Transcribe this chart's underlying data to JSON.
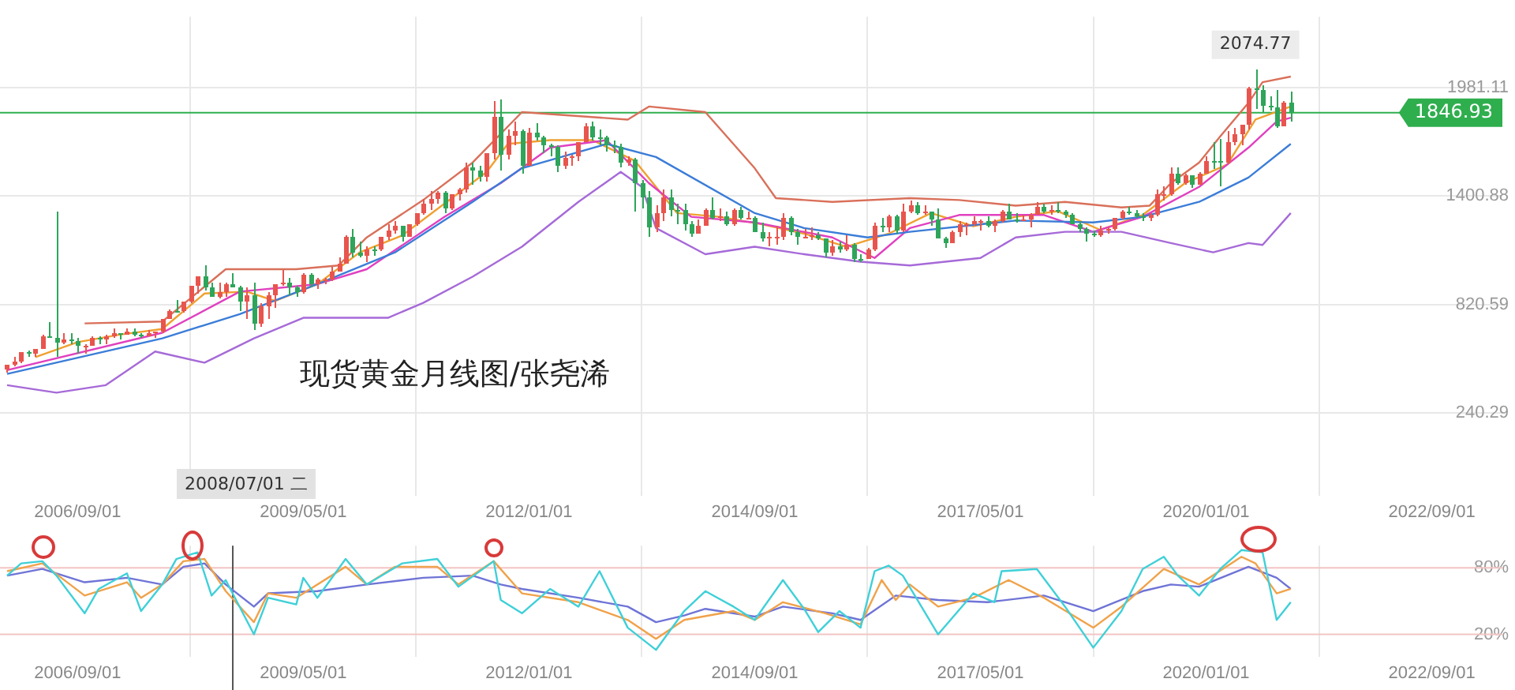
{
  "chart_data": [
    {
      "type": "candlestick",
      "title": "现货黄金月线图/张尧浠",
      "x": [
        "2005-11",
        "2005-12",
        "2006-01",
        "2006-02",
        "2006-03",
        "2006-04",
        "2006-05",
        "2006-06",
        "2006-07",
        "2006-08",
        "2006-09",
        "2006-10",
        "2006-11",
        "2006-12",
        "2007-01",
        "2007-02",
        "2007-03",
        "2007-04",
        "2007-05",
        "2007-06",
        "2007-07",
        "2007-08",
        "2007-09",
        "2007-10",
        "2007-11",
        "2007-12",
        "2008-01",
        "2008-02",
        "2008-03",
        "2008-04",
        "2008-05",
        "2008-06",
        "2008-07",
        "2008-08",
        "2008-09",
        "2008-10",
        "2008-11",
        "2008-12",
        "2009-01",
        "2009-02",
        "2009-03",
        "2009-04",
        "2009-05",
        "2009-06",
        "2009-07",
        "2009-08",
        "2009-09",
        "2009-10",
        "2009-11",
        "2009-12",
        "2010-01",
        "2010-02",
        "2010-03",
        "2010-04",
        "2010-05",
        "2010-06",
        "2010-07",
        "2010-08",
        "2010-09",
        "2010-10",
        "2010-11",
        "2010-12",
        "2011-01",
        "2011-02",
        "2011-03",
        "2011-04",
        "2011-05",
        "2011-06",
        "2011-07",
        "2011-08",
        "2011-09",
        "2011-10",
        "2011-11",
        "2011-12",
        "2012-01",
        "2012-02",
        "2012-03",
        "2012-04",
        "2012-05",
        "2012-06",
        "2012-07",
        "2012-08",
        "2012-09",
        "2012-10",
        "2012-11",
        "2012-12",
        "2013-01",
        "2013-02",
        "2013-03",
        "2013-04",
        "2013-05",
        "2013-06",
        "2013-07",
        "2013-08",
        "2013-09",
        "2013-10",
        "2013-11",
        "2013-12",
        "2014-01",
        "2014-02",
        "2014-03",
        "2014-04",
        "2014-05",
        "2014-06",
        "2014-07",
        "2014-08",
        "2014-09",
        "2014-10",
        "2014-11",
        "2014-12",
        "2015-01",
        "2015-02",
        "2015-03",
        "2015-04",
        "2015-05",
        "2015-06",
        "2015-07",
        "2015-08",
        "2015-09",
        "2015-10",
        "2015-11",
        "2015-12",
        "2016-01",
        "2016-02",
        "2016-03",
        "2016-04",
        "2016-05",
        "2016-06",
        "2016-07",
        "2016-08",
        "2016-09",
        "2016-10",
        "2016-11",
        "2016-12",
        "2017-01",
        "2017-02",
        "2017-03",
        "2017-04",
        "2017-05",
        "2017-06",
        "2017-07",
        "2017-08",
        "2017-09",
        "2017-10",
        "2017-11",
        "2017-12",
        "2018-01",
        "2018-02",
        "2018-03",
        "2018-04",
        "2018-05",
        "2018-06",
        "2018-07",
        "2018-08",
        "2018-09",
        "2018-10",
        "2018-11",
        "2018-12",
        "2019-01",
        "2019-02",
        "2019-03",
        "2019-04",
        "2019-05",
        "2019-06",
        "2019-07",
        "2019-08",
        "2019-09",
        "2019-10",
        "2019-11",
        "2019-12",
        "2020-01",
        "2020-02",
        "2020-03",
        "2020-04",
        "2020-05",
        "2020-06",
        "2020-07",
        "2020-08",
        "2020-09",
        "2020-10",
        "2020-11",
        "2020-12",
        "2021-01"
      ],
      "ohlc": [
        [
          470,
          500,
          460,
          495
        ],
        [
          495,
          540,
          490,
          513
        ],
        [
          513,
          570,
          510,
          568
        ],
        [
          568,
          575,
          540,
          556
        ],
        [
          556,
          585,
          540,
          583
        ],
        [
          583,
          660,
          580,
          654
        ],
        [
          654,
          730,
          640,
          643
        ],
        [
          643,
          1320,
          540,
          614
        ],
        [
          614,
          665,
          610,
          632
        ],
        [
          632,
          665,
          612,
          623
        ],
        [
          623,
          640,
          560,
          599
        ],
        [
          599,
          610,
          560,
          604
        ],
        [
          604,
          650,
          600,
          646
        ],
        [
          646,
          650,
          610,
          632
        ],
        [
          632,
          660,
          605,
          650
        ],
        [
          650,
          690,
          645,
          665
        ],
        [
          665,
          670,
          635,
          663
        ],
        [
          663,
          695,
          660,
          679
        ],
        [
          679,
          690,
          650,
          659
        ],
        [
          659,
          670,
          640,
          650
        ],
        [
          650,
          685,
          648,
          665
        ],
        [
          665,
          680,
          640,
          673
        ],
        [
          673,
          745,
          670,
          743
        ],
        [
          743,
          795,
          740,
          789
        ],
        [
          789,
          845,
          775,
          783
        ],
        [
          783,
          840,
          780,
          834
        ],
        [
          834,
          925,
          830,
          923
        ],
        [
          923,
          975,
          880,
          972
        ],
        [
          972,
          1033,
          900,
          916
        ],
        [
          916,
          935,
          860,
          865
        ],
        [
          865,
          935,
          850,
          886
        ],
        [
          886,
          935,
          860,
          928
        ],
        [
          928,
          990,
          910,
          913
        ],
        [
          913,
          918,
          786,
          833
        ],
        [
          833,
          910,
          740,
          871
        ],
        [
          871,
          935,
          681,
          718
        ],
        [
          718,
          825,
          705,
          815
        ],
        [
          815,
          885,
          745,
          869
        ],
        [
          869,
          930,
          800,
          927
        ],
        [
          927,
          1005,
          920,
          942
        ],
        [
          942,
          965,
          870,
          916
        ],
        [
          916,
          920,
          865,
          884
        ],
        [
          884,
          985,
          880,
          979
        ],
        [
          979,
          990,
          915,
          927
        ],
        [
          927,
          965,
          905,
          955
        ],
        [
          955,
          965,
          930,
          955
        ],
        [
          955,
          1025,
          950,
          1001
        ],
        [
          1001,
          1070,
          1000,
          1040
        ],
        [
          1040,
          1195,
          1040,
          1182
        ],
        [
          1182,
          1227,
          1075,
          1096
        ],
        [
          1096,
          1160,
          1075,
          1081
        ],
        [
          1081,
          1130,
          1045,
          1118
        ],
        [
          1118,
          1130,
          1085,
          1113
        ],
        [
          1113,
          1180,
          1110,
          1179
        ],
        [
          1179,
          1250,
          1165,
          1213
        ],
        [
          1213,
          1265,
          1200,
          1244
        ],
        [
          1244,
          1245,
          1155,
          1181
        ],
        [
          1181,
          1250,
          1180,
          1248
        ],
        [
          1248,
          1310,
          1240,
          1307
        ],
        [
          1307,
          1388,
          1305,
          1357
        ],
        [
          1357,
          1425,
          1330,
          1386
        ],
        [
          1386,
          1432,
          1360,
          1421
        ],
        [
          1421,
          1425,
          1310,
          1333
        ],
        [
          1333,
          1415,
          1325,
          1410
        ],
        [
          1410,
          1447,
          1380,
          1439
        ],
        [
          1439,
          1576,
          1420,
          1556
        ],
        [
          1556,
          1577,
          1462,
          1536
        ],
        [
          1536,
          1560,
          1480,
          1500
        ],
        [
          1500,
          1632,
          1478,
          1628
        ],
        [
          1628,
          1913,
          1600,
          1826
        ],
        [
          1826,
          1921,
          1535,
          1620
        ],
        [
          1620,
          1760,
          1600,
          1723
        ],
        [
          1723,
          1803,
          1670,
          1746
        ],
        [
          1746,
          1760,
          1523,
          1565
        ],
        [
          1565,
          1765,
          1565,
          1740
        ],
        [
          1740,
          1792,
          1697,
          1711
        ],
        [
          1711,
          1720,
          1628,
          1669
        ],
        [
          1669,
          1680,
          1613,
          1664
        ],
        [
          1664,
          1669,
          1527,
          1561
        ],
        [
          1561,
          1640,
          1547,
          1604
        ],
        [
          1604,
          1624,
          1565,
          1615
        ],
        [
          1615,
          1692,
          1586,
          1692
        ],
        [
          1692,
          1790,
          1689,
          1773
        ],
        [
          1773,
          1796,
          1698,
          1719
        ],
        [
          1719,
          1755,
          1672,
          1713
        ],
        [
          1713,
          1725,
          1635,
          1675
        ],
        [
          1675,
          1695,
          1627,
          1663
        ],
        [
          1663,
          1680,
          1555,
          1578
        ],
        [
          1578,
          1616,
          1562,
          1595
        ],
        [
          1595,
          1605,
          1321,
          1472
        ],
        [
          1472,
          1488,
          1338,
          1393
        ],
        [
          1393,
          1424,
          1180,
          1234
        ],
        [
          1234,
          1348,
          1208,
          1313
        ],
        [
          1313,
          1434,
          1270,
          1396
        ],
        [
          1396,
          1434,
          1292,
          1327
        ],
        [
          1327,
          1361,
          1251,
          1323
        ],
        [
          1323,
          1362,
          1221,
          1253
        ],
        [
          1253,
          1267,
          1187,
          1202
        ],
        [
          1202,
          1280,
          1200,
          1244
        ],
        [
          1244,
          1332,
          1240,
          1326
        ],
        [
          1326,
          1392,
          1277,
          1284
        ],
        [
          1284,
          1331,
          1268,
          1296
        ],
        [
          1296,
          1315,
          1240,
          1250
        ],
        [
          1250,
          1332,
          1241,
          1327
        ],
        [
          1327,
          1345,
          1280,
          1282
        ],
        [
          1282,
          1322,
          1273,
          1287
        ],
        [
          1287,
          1293,
          1206,
          1210
        ],
        [
          1210,
          1255,
          1161,
          1172
        ],
        [
          1172,
          1208,
          1131,
          1182
        ],
        [
          1182,
          1239,
          1141,
          1184
        ],
        [
          1184,
          1307,
          1167,
          1283
        ],
        [
          1283,
          1293,
          1191,
          1212
        ],
        [
          1212,
          1224,
          1142,
          1183
        ],
        [
          1183,
          1225,
          1175,
          1184
        ],
        [
          1184,
          1232,
          1170,
          1190
        ],
        [
          1190,
          1205,
          1162,
          1172
        ],
        [
          1172,
          1176,
          1077,
          1095
        ],
        [
          1095,
          1170,
          1080,
          1132
        ],
        [
          1132,
          1157,
          1098,
          1115
        ],
        [
          1115,
          1191,
          1110,
          1142
        ],
        [
          1142,
          1146,
          1052,
          1065
        ],
        [
          1065,
          1088,
          1046,
          1061
        ],
        [
          1061,
          1126,
          1061,
          1118
        ],
        [
          1118,
          1263,
          1111,
          1238
        ],
        [
          1238,
          1283,
          1208,
          1233
        ],
        [
          1233,
          1304,
          1207,
          1293
        ],
        [
          1293,
          1304,
          1200,
          1215
        ],
        [
          1215,
          1363,
          1208,
          1322
        ],
        [
          1322,
          1375,
          1311,
          1351
        ],
        [
          1351,
          1367,
          1300,
          1309
        ],
        [
          1309,
          1352,
          1302,
          1316
        ],
        [
          1316,
          1318,
          1241,
          1277
        ],
        [
          1277,
          1338,
          1171,
          1173
        ],
        [
          1173,
          1180,
          1122,
          1152
        ],
        [
          1152,
          1220,
          1146,
          1211
        ],
        [
          1211,
          1264,
          1180,
          1249
        ],
        [
          1249,
          1262,
          1194,
          1249
        ],
        [
          1249,
          1296,
          1240,
          1268
        ],
        [
          1268,
          1272,
          1214,
          1269
        ],
        [
          1269,
          1296,
          1236,
          1242
        ],
        [
          1242,
          1274,
          1205,
          1269
        ],
        [
          1269,
          1330,
          1259,
          1322
        ],
        [
          1322,
          1358,
          1278,
          1280
        ],
        [
          1280,
          1306,
          1260,
          1271
        ],
        [
          1271,
          1299,
          1264,
          1275
        ],
        [
          1275,
          1309,
          1236,
          1303
        ],
        [
          1303,
          1366,
          1302,
          1345
        ],
        [
          1345,
          1362,
          1307,
          1318
        ],
        [
          1318,
          1356,
          1303,
          1325
        ],
        [
          1325,
          1366,
          1310,
          1315
        ],
        [
          1315,
          1326,
          1282,
          1298
        ],
        [
          1298,
          1309,
          1250,
          1253
        ],
        [
          1253,
          1266,
          1211,
          1224
        ],
        [
          1224,
          1236,
          1160,
          1201
        ],
        [
          1201,
          1214,
          1180,
          1192
        ],
        [
          1192,
          1243,
          1182,
          1215
        ],
        [
          1215,
          1237,
          1196,
          1222
        ],
        [
          1222,
          1284,
          1221,
          1282
        ],
        [
          1282,
          1326,
          1276,
          1321
        ],
        [
          1321,
          1346,
          1302,
          1313
        ],
        [
          1313,
          1324,
          1281,
          1292
        ],
        [
          1292,
          1310,
          1266,
          1284
        ],
        [
          1284,
          1306,
          1266,
          1305
        ],
        [
          1305,
          1439,
          1295,
          1409
        ],
        [
          1409,
          1452,
          1381,
          1413
        ],
        [
          1413,
          1555,
          1400,
          1520
        ],
        [
          1520,
          1557,
          1459,
          1472
        ],
        [
          1472,
          1518,
          1459,
          1513
        ],
        [
          1513,
          1516,
          1445,
          1464
        ],
        [
          1464,
          1525,
          1458,
          1517
        ],
        [
          1517,
          1611,
          1517,
          1589
        ],
        [
          1589,
          1689,
          1547,
          1585
        ],
        [
          1585,
          1703,
          1451,
          1577
        ],
        [
          1577,
          1747,
          1568,
          1687
        ],
        [
          1687,
          1765,
          1670,
          1730
        ],
        [
          1730,
          1786,
          1671,
          1781
        ],
        [
          1781,
          1984,
          1757,
          1975
        ],
        [
          1975,
          2074.77,
          1863,
          1968
        ],
        [
          1968,
          1992,
          1848,
          1886
        ],
        [
          1886,
          1933,
          1860,
          1879
        ],
        [
          1879,
          1966,
          1764,
          1776
        ],
        [
          1776,
          1906,
          1775,
          1898
        ],
        [
          1898,
          1959,
          1803,
          1846.93
        ]
      ],
      "colors": [
        "#e8554e",
        "#e8554e",
        "#e8554e",
        "#2ea55a",
        "#e8554e",
        "#e8554e",
        "#2ea55a",
        "#2ea55a",
        "#e8554e",
        "#2ea55a",
        "#2ea55a",
        "#e8554e",
        "#e8554e",
        "#2ea55a",
        "#e8554e",
        "#e8554e",
        "#2ea55a",
        "#e8554e",
        "#2ea55a",
        "#2ea55a",
        "#e8554e",
        "#e8554e",
        "#e8554e",
        "#e8554e",
        "#2ea55a",
        "#e8554e",
        "#e8554e",
        "#e8554e",
        "#2ea55a",
        "#2ea55a",
        "#e8554e",
        "#e8554e",
        "#2ea55a",
        "#2ea55a",
        "#e8554e",
        "#2ea55a",
        "#e8554e",
        "#e8554e",
        "#e8554e",
        "#e8554e",
        "#2ea55a",
        "#2ea55a",
        "#e8554e",
        "#2ea55a",
        "#e8554e",
        "#e8554e",
        "#e8554e",
        "#e8554e",
        "#e8554e",
        "#2ea55a",
        "#2ea55a",
        "#e8554e",
        "#2ea55a",
        "#e8554e",
        "#e8554e",
        "#e8554e",
        "#2ea55a",
        "#e8554e",
        "#e8554e",
        "#e8554e",
        "#e8554e",
        "#e8554e",
        "#2ea55a",
        "#e8554e",
        "#e8554e",
        "#e8554e",
        "#2ea55a",
        "#2ea55a",
        "#e8554e",
        "#e8554e",
        "#2ea55a",
        "#e8554e",
        "#e8554e",
        "#2ea55a",
        "#e8554e",
        "#2ea55a",
        "#2ea55a",
        "#2ea55a",
        "#2ea55a",
        "#e8554e",
        "#e8554e",
        "#e8554e",
        "#e8554e",
        "#2ea55a",
        "#2ea55a",
        "#2ea55a",
        "#2ea55a",
        "#2ea55a",
        "#e8554e",
        "#2ea55a",
        "#2ea55a",
        "#2ea55a",
        "#e8554e",
        "#e8554e",
        "#2ea55a",
        "#2ea55a",
        "#2ea55a",
        "#2ea55a",
        "#e8554e",
        "#e8554e",
        "#2ea55a",
        "#e8554e",
        "#2ea55a",
        "#e8554e",
        "#2ea55a",
        "#e8554e",
        "#2ea55a",
        "#2ea55a",
        "#e8554e",
        "#e8554e",
        "#e8554e",
        "#2ea55a",
        "#2ea55a",
        "#e8554e",
        "#e8554e",
        "#2ea55a",
        "#2ea55a",
        "#e8554e",
        "#2ea55a",
        "#e8554e",
        "#2ea55a",
        "#2ea55a",
        "#e8554e",
        "#e8554e",
        "#2ea55a",
        "#e8554e",
        "#2ea55a",
        "#e8554e",
        "#e8554e",
        "#2ea55a",
        "#e8554e",
        "#2ea55a",
        "#2ea55a",
        "#2ea55a",
        "#e8554e",
        "#e8554e",
        "#e8554e",
        "#e8554e",
        "#e8554e",
        "#2ea55a",
        "#e8554e",
        "#e8554e",
        "#2ea55a",
        "#2ea55a",
        "#e8554e",
        "#e8554e",
        "#e8554e",
        "#2ea55a",
        "#e8554e",
        "#2ea55a",
        "#2ea55a",
        "#2ea55a",
        "#2ea55a",
        "#2ea55a",
        "#2ea55a",
        "#e8554e",
        "#e8554e",
        "#e8554e",
        "#e8554e",
        "#2ea55a",
        "#2ea55a",
        "#2ea55a",
        "#e8554e",
        "#e8554e",
        "#e8554e",
        "#e8554e",
        "#2ea55a",
        "#e8554e",
        "#2ea55a",
        "#e8554e",
        "#e8554e",
        "#2ea55a",
        "#2ea55a",
        "#e8554e",
        "#e8554e",
        "#e8554e",
        "#e8554e",
        "#2ea55a",
        "#2ea55a",
        "#2ea55a",
        "#2ea55a",
        "#e8554e",
        "#2ea55a"
      ],
      "series": [
        {
          "type": "line",
          "color": "#d9705a",
          "x": [
            "2006-10",
            "2007-09",
            "2008-06",
            "2009-04",
            "2009-10",
            "2010-02",
            "2010-10",
            "2011-05",
            "2011-12",
            "2013-03",
            "2013-06",
            "2014-02",
            "2014-09",
            "2014-12",
            "2015-08",
            "2016-07",
            "2017-02",
            "2017-10",
            "2018-05",
            "2019-01",
            "2019-05",
            "2019-08",
            "2019-12",
            "2020-03",
            "2020-07",
            "2020-09",
            "2021-01"
          ],
          "values": [
            720,
            730,
            1010,
            1010,
            1030,
            1180,
            1380,
            1580,
            1850,
            1810,
            1880,
            1850,
            1550,
            1390,
            1370,
            1390,
            1380,
            1350,
            1370,
            1340,
            1350,
            1470,
            1580,
            1720,
            1900,
            2010,
            2040
          ]
        },
        {
          "type": "line",
          "color": "#a66ad8",
          "x": [
            "2005-11",
            "2006-06",
            "2007-01",
            "2007-08",
            "2008-03",
            "2008-10",
            "2009-05",
            "2009-11",
            "2010-05",
            "2010-10",
            "2011-05",
            "2011-12",
            "2012-08",
            "2013-02",
            "2013-05",
            "2013-07",
            "2014-02",
            "2014-09",
            "2015-04",
            "2015-12",
            "2016-07",
            "2017-05",
            "2017-10",
            "2018-05",
            "2019-01",
            "2019-08",
            "2020-02",
            "2020-07",
            "2020-09",
            "2021-01"
          ],
          "values": [
            390,
            350,
            390,
            570,
            510,
            640,
            750,
            750,
            750,
            830,
            970,
            1130,
            1370,
            1530,
            1450,
            1230,
            1090,
            1130,
            1090,
            1050,
            1030,
            1070,
            1180,
            1210,
            1210,
            1150,
            1100,
            1150,
            1140,
            1310
          ]
        },
        {
          "type": "line",
          "color": "#3b7dd8",
          "x": [
            "2005-11",
            "2007-09",
            "2008-08",
            "2009-07",
            "2010-06",
            "2011-05",
            "2011-12",
            "2012-12",
            "2013-07",
            "2014-09",
            "2015-04",
            "2016-01",
            "2016-07",
            "2017-10",
            "2018-09",
            "2019-04",
            "2019-12",
            "2020-07",
            "2021-01"
          ],
          "values": [
            450,
            640,
            770,
            930,
            1100,
            1370,
            1550,
            1680,
            1610,
            1310,
            1230,
            1180,
            1210,
            1270,
            1260,
            1290,
            1370,
            1500,
            1680
          ]
        },
        {
          "type": "line",
          "color": "#e040c0",
          "x": [
            "2005-11",
            "2007-09",
            "2008-08",
            "2009-07",
            "2010-02",
            "2011-01",
            "2011-09",
            "2012-04",
            "2012-12",
            "2013-06",
            "2013-12",
            "2014-09",
            "2015-08",
            "2016-02",
            "2016-07",
            "2017-02",
            "2018-02",
            "2018-09",
            "2019-04",
            "2019-12",
            "2020-07",
            "2020-11",
            "2021-01"
          ],
          "values": [
            470,
            670,
            890,
            930,
            1010,
            1290,
            1470,
            1660,
            1700,
            1470,
            1290,
            1260,
            1180,
            1070,
            1230,
            1300,
            1300,
            1210,
            1290,
            1450,
            1660,
            1800,
            1820
          ]
        },
        {
          "type": "line",
          "color": "#f0a030",
          "x": [
            "2006-03",
            "2006-09",
            "2007-03",
            "2007-09",
            "2008-03",
            "2008-09",
            "2009-01",
            "2009-07",
            "2010-01",
            "2010-07",
            "2011-01",
            "2011-07",
            "2011-10",
            "2012-04",
            "2012-10",
            "2013-04",
            "2013-10",
            "2014-04",
            "2014-10",
            "2015-04",
            "2015-10",
            "2016-04",
            "2016-10",
            "2017-04",
            "2017-10",
            "2018-04",
            "2018-10",
            "2019-04",
            "2019-10",
            "2020-04",
            "2020-08",
            "2021-01"
          ],
          "values": [
            540,
            620,
            660,
            690,
            880,
            890,
            840,
            930,
            1100,
            1190,
            1360,
            1530,
            1680,
            1700,
            1700,
            1590,
            1310,
            1290,
            1250,
            1200,
            1130,
            1200,
            1310,
            1240,
            1290,
            1320,
            1220,
            1300,
            1470,
            1570,
            1810,
            1880
          ]
        }
      ],
      "xlim": [
        "2005-10",
        "2023-07"
      ],
      "xticks": [
        {
          "value": "2006-09",
          "label": "2006/09/01"
        },
        {
          "value": "2009-05",
          "label": "2009/05/01"
        },
        {
          "value": "2012-01",
          "label": "2012/01/01"
        },
        {
          "value": "2014-09",
          "label": "2014/09/01"
        },
        {
          "value": "2017-05",
          "label": "2017/05/01"
        },
        {
          "value": "2020-01",
          "label": "2020/01/01"
        },
        {
          "value": "2022-09",
          "label": "2022/09/01"
        }
      ],
      "ylim": [
        -200,
        2360
      ],
      "yticks": [
        1981.11,
        1400.88,
        820.59,
        240.29
      ],
      "grid": true,
      "marker": "none",
      "ref_lines": [
        {
          "axis": "y",
          "value": 1846.93,
          "label": "1846.93",
          "color": "#2fae4e"
        }
      ],
      "annotations": [
        {
          "text": "2074.77",
          "x": "2020-08",
          "y": 2074.77
        },
        "2008/07/01 二"
      ]
    },
    {
      "type": "line",
      "series": [
        {
          "color": "#3fd0d8",
          "x": [
            "2005-11",
            "2006-01",
            "2006-04",
            "2006-06",
            "2006-10",
            "2006-12",
            "2007-04",
            "2007-06",
            "2007-09",
            "2007-11",
            "2008-02",
            "2008-04",
            "2008-06",
            "2008-10",
            "2008-12",
            "2009-04",
            "2009-05",
            "2009-07",
            "2009-11",
            "2010-02",
            "2010-07",
            "2010-12",
            "2011-03",
            "2011-08",
            "2011-09",
            "2011-12",
            "2012-04",
            "2012-08",
            "2012-11",
            "2013-03",
            "2013-07",
            "2013-11",
            "2014-02",
            "2014-06",
            "2014-09",
            "2015-01",
            "2015-04",
            "2015-06",
            "2015-09",
            "2015-12",
            "2016-02",
            "2016-04",
            "2016-06",
            "2016-11",
            "2017-04",
            "2017-07",
            "2017-08",
            "2018-01",
            "2018-05",
            "2018-09",
            "2019-01",
            "2019-04",
            "2019-07",
            "2019-09",
            "2019-12",
            "2020-03",
            "2020-06",
            "2020-09",
            "2020-11",
            "2021-01"
          ],
          "values": [
            73,
            84,
            86,
            73,
            39,
            61,
            75,
            41,
            65,
            88,
            94,
            55,
            69,
            20,
            53,
            47,
            71,
            53,
            88,
            65,
            84,
            88,
            63,
            86,
            51,
            39,
            61,
            45,
            77,
            26,
            6,
            41,
            59,
            45,
            33,
            69,
            43,
            22,
            41,
            26,
            77,
            82,
            73,
            20,
            57,
            49,
            77,
            79,
            45,
            8,
            41,
            79,
            90,
            73,
            55,
            79,
            96,
            94,
            33,
            49
          ]
        },
        {
          "color": "#f0a24a",
          "x": [
            "2005-11",
            "2006-04",
            "2006-10",
            "2007-04",
            "2007-06",
            "2007-09",
            "2007-12",
            "2008-03",
            "2008-06",
            "2008-10",
            "2008-12",
            "2009-04",
            "2009-11",
            "2010-02",
            "2010-06",
            "2010-12",
            "2011-03",
            "2011-08",
            "2011-12",
            "2012-08",
            "2013-03",
            "2013-07",
            "2013-11",
            "2014-06",
            "2014-09",
            "2015-01",
            "2015-07",
            "2015-12",
            "2016-03",
            "2016-05",
            "2016-07",
            "2016-11",
            "2017-04",
            "2017-09",
            "2018-02",
            "2018-09",
            "2019-01",
            "2019-07",
            "2019-12",
            "2020-06",
            "2020-08",
            "2020-11",
            "2021-01"
          ],
          "values": [
            77,
            84,
            55,
            67,
            53,
            65,
            86,
            88,
            59,
            31,
            57,
            53,
            81,
            65,
            81,
            81,
            65,
            86,
            57,
            49,
            33,
            16,
            33,
            41,
            33,
            49,
            39,
            29,
            69,
            51,
            65,
            45,
            53,
            69,
            53,
            26,
            45,
            79,
            65,
            90,
            84,
            57,
            61
          ]
        },
        {
          "color": "#6f74d6",
          "x": [
            "2005-11",
            "2006-04",
            "2006-10",
            "2007-04",
            "2007-09",
            "2007-12",
            "2008-03",
            "2008-06",
            "2008-10",
            "2008-12",
            "2009-07",
            "2010-02",
            "2010-10",
            "2011-05",
            "2011-09",
            "2011-12",
            "2012-08",
            "2013-03",
            "2013-07",
            "2013-11",
            "2014-02",
            "2014-09",
            "2015-01",
            "2015-08",
            "2015-12",
            "2016-05",
            "2016-11",
            "2017-06",
            "2018-02",
            "2018-09",
            "2019-04",
            "2019-08",
            "2019-12",
            "2020-07",
            "2020-11",
            "2021-01"
          ],
          "values": [
            73,
            79,
            67,
            71,
            65,
            81,
            84,
            65,
            45,
            57,
            59,
            65,
            71,
            73,
            65,
            61,
            53,
            45,
            31,
            37,
            43,
            36,
            45,
            39,
            33,
            55,
            51,
            49,
            55,
            41,
            59,
            65,
            63,
            81,
            71,
            61
          ]
        }
      ],
      "xlim": [
        "2005-10",
        "2023-07"
      ],
      "xticks": [
        {
          "value": "2006-09",
          "label": "2006/09/01"
        },
        {
          "value": "2009-05",
          "label": "2009/05/01"
        },
        {
          "value": "2012-01",
          "label": "2012/01/01"
        },
        {
          "value": "2014-09",
          "label": "2014/09/01"
        },
        {
          "value": "2017-05",
          "label": "2017/05/01"
        },
        {
          "value": "2020-01",
          "label": "2020/01/01"
        },
        {
          "value": "2022-09",
          "label": "2022/09/01"
        }
      ],
      "ylim": [
        0,
        100
      ],
      "yticks": [
        {
          "value": 80,
          "label": "80%"
        },
        {
          "value": 20,
          "label": "20%"
        }
      ],
      "grid": "x",
      "marker": "none",
      "ref_lines": [
        {
          "axis": "y",
          "value": 80,
          "color": "#f3c4c4"
        },
        {
          "axis": "y",
          "value": 20,
          "color": "#f3c4c4"
        },
        {
          "axis": "x",
          "value": "2008-07",
          "color": "#555555"
        }
      ]
    }
  ]
}
